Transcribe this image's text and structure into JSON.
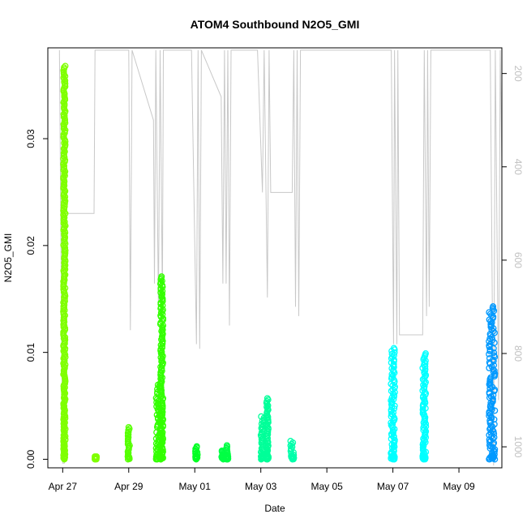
{
  "chart_data": {
    "type": "scatter",
    "title": "ATOM4 Southbound N2O5_GMI",
    "xlabel": "Date",
    "ylabel": "N2O5_GMI",
    "x_ticks": [
      "Apr 27",
      "Apr 29",
      "May 01",
      "May 03",
      "May 05",
      "May 07",
      "May 09"
    ],
    "x_tick_days": [
      0,
      2,
      4,
      6,
      8,
      10,
      12
    ],
    "xlim_days": [
      -0.45,
      13.3
    ],
    "y_ticks": [
      "0.00",
      "0.01",
      "0.02",
      "0.03"
    ],
    "y_tick_values": [
      0.0,
      0.01,
      0.02,
      0.03
    ],
    "ylim": [
      -0.0008,
      0.0385
    ],
    "y2_ticks": [
      "200",
      "400",
      "600",
      "800",
      "1000"
    ],
    "y2_tick_values": [
      200,
      400,
      600,
      800,
      1000
    ],
    "y2lim": [
      1045,
      145
    ],
    "grid": false,
    "clusters": [
      {
        "day": 0.05,
        "width": 0.06,
        "ymax": 0.0368,
        "color": "#7fff00"
      },
      {
        "day": 1.0,
        "width": 0.05,
        "ymax": 0.0002,
        "color": "#7fff00"
      },
      {
        "day": 2.0,
        "width": 0.06,
        "ymax": 0.003,
        "color": "#55ff00"
      },
      {
        "day": 2.9,
        "width": 0.14,
        "ymax": 0.0071,
        "color": "#33ff00"
      },
      {
        "day": 3.0,
        "width": 0.08,
        "ymax": 0.0171,
        "color": "#33ff00"
      },
      {
        "day": 4.05,
        "width": 0.07,
        "ymax": 0.0012,
        "color": "#00ff22"
      },
      {
        "day": 4.85,
        "width": 0.08,
        "ymax": 0.0008,
        "color": "#00ff44"
      },
      {
        "day": 4.98,
        "width": 0.06,
        "ymax": 0.0013,
        "color": "#00ff44"
      },
      {
        "day": 6.05,
        "width": 0.1,
        "ymax": 0.004,
        "color": "#00ff99"
      },
      {
        "day": 6.2,
        "width": 0.06,
        "ymax": 0.0057,
        "color": "#00ff99"
      },
      {
        "day": 6.95,
        "width": 0.1,
        "ymax": 0.0017,
        "color": "#00ffaa"
      },
      {
        "day": 10.0,
        "width": 0.12,
        "ymax": 0.0104,
        "color": "#00ffff"
      },
      {
        "day": 10.95,
        "width": 0.1,
        "ymax": 0.0099,
        "color": "#00ffff"
      },
      {
        "day": 13.0,
        "width": 0.18,
        "ymax": 0.0143,
        "color": "#0099ff"
      }
    ],
    "altitude_profile": [
      [
        -0.1,
        150
      ],
      [
        0.0,
        1035
      ],
      [
        0.05,
        1035
      ],
      [
        0.1,
        500
      ],
      [
        0.95,
        500
      ],
      [
        0.98,
        150
      ],
      [
        1.4,
        150
      ],
      [
        2.0,
        150
      ],
      [
        2.05,
        750
      ],
      [
        2.1,
        150
      ],
      [
        2.75,
        300
      ],
      [
        2.78,
        650
      ],
      [
        2.82,
        150
      ],
      [
        2.9,
        700
      ],
      [
        2.95,
        150
      ],
      [
        3.02,
        690
      ],
      [
        3.05,
        150
      ],
      [
        3.1,
        150
      ],
      [
        3.9,
        150
      ],
      [
        4.05,
        780
      ],
      [
        4.1,
        150
      ],
      [
        4.15,
        790
      ],
      [
        4.2,
        150
      ],
      [
        4.8,
        250
      ],
      [
        4.85,
        650
      ],
      [
        4.9,
        150
      ],
      [
        4.95,
        650
      ],
      [
        5.0,
        150
      ],
      [
        5.05,
        740
      ],
      [
        5.1,
        150
      ],
      [
        5.9,
        150
      ],
      [
        6.05,
        455
      ],
      [
        6.1,
        150
      ],
      [
        6.2,
        680
      ],
      [
        6.25,
        150
      ],
      [
        6.3,
        455
      ],
      [
        6.95,
        455
      ],
      [
        7.0,
        150
      ],
      [
        7.05,
        700
      ],
      [
        7.1,
        150
      ],
      [
        7.15,
        720
      ],
      [
        7.2,
        150
      ],
      [
        9.95,
        150
      ],
      [
        10.02,
        780
      ],
      [
        10.05,
        150
      ],
      [
        10.12,
        780
      ],
      [
        10.15,
        150
      ],
      [
        10.2,
        760
      ],
      [
        10.9,
        760
      ],
      [
        10.95,
        150
      ],
      [
        11.02,
        720
      ],
      [
        11.05,
        150
      ],
      [
        11.1,
        700
      ],
      [
        11.15,
        150
      ],
      [
        12.95,
        150
      ],
      [
        13.05,
        1040
      ],
      [
        13.1,
        150
      ],
      [
        13.2,
        900
      ],
      [
        13.25,
        150
      ],
      [
        13.3,
        400
      ]
    ]
  }
}
